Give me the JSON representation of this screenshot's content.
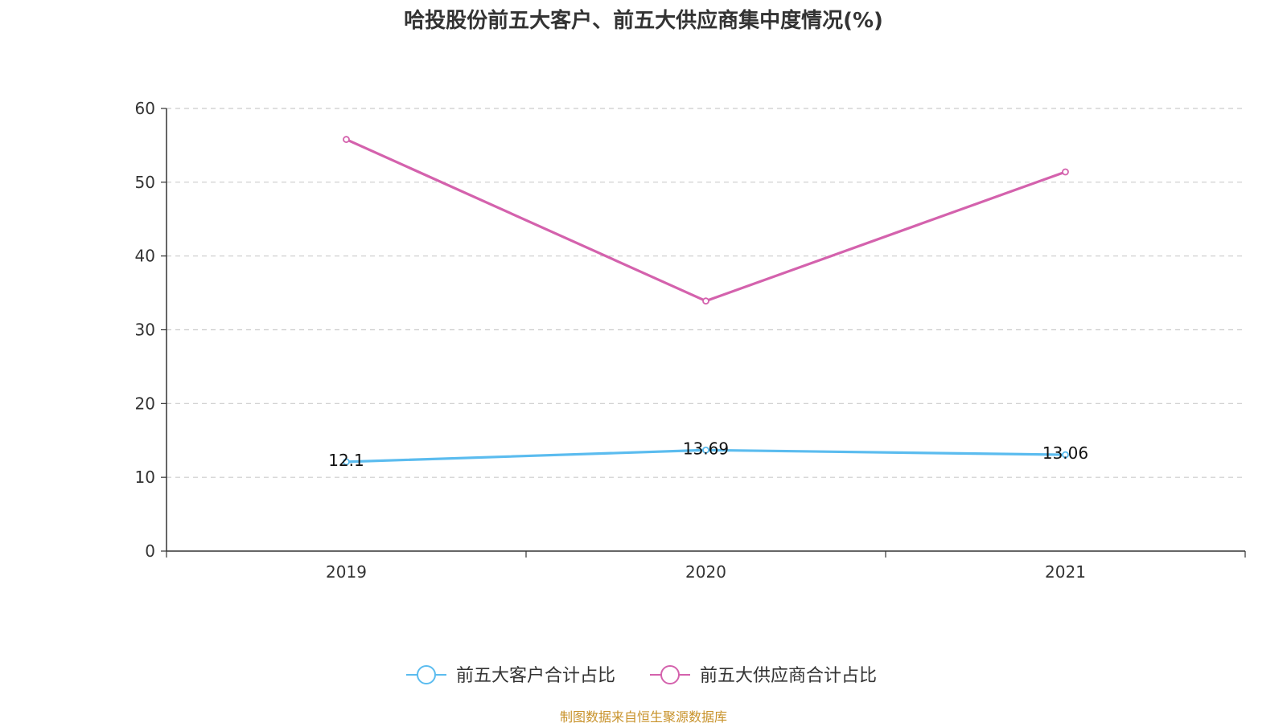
{
  "chart_data": {
    "type": "line",
    "title": "哈投股份前五大客户、前五大供应商集中度情况(%)",
    "categories": [
      "2019",
      "2020",
      "2021"
    ],
    "ylim": [
      0,
      60
    ],
    "yticks": [
      0,
      10,
      20,
      30,
      40,
      50,
      60
    ],
    "ytick_labels": [
      "0",
      "10",
      "20",
      "30",
      "40",
      "50",
      "60"
    ],
    "grid": true,
    "legend_position": "bottom-center",
    "series": [
      {
        "name": "前五大客户合计占比",
        "values": [
          12.1,
          13.69,
          13.06
        ],
        "labels": [
          "12.1",
          "13.69",
          "13.06"
        ],
        "color": "#5bbcef",
        "show_labels": true
      },
      {
        "name": "前五大供应商合计占比",
        "values": [
          55.8,
          33.9,
          51.4
        ],
        "color": "#d462ad",
        "show_labels": false
      }
    ]
  },
  "source": {
    "text": "制图数据来自恒生聚源数据库",
    "color": "#c8922a"
  }
}
